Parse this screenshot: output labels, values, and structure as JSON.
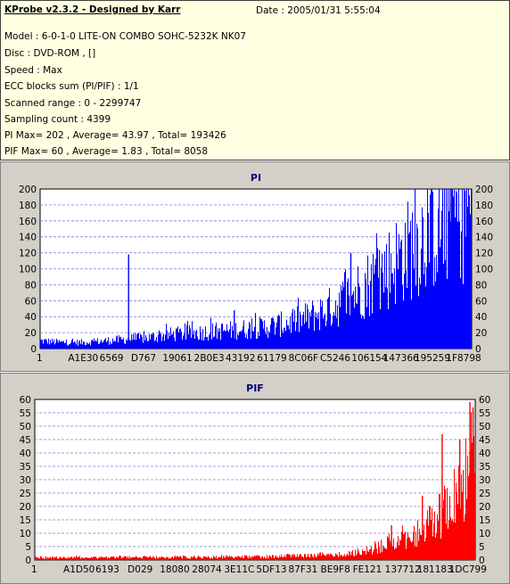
{
  "info": {
    "app_title": "KProbe v2.3.2 - Designed by Karr",
    "date": "Date : 2005/01/31 5:55:04",
    "lines": [
      "Model : 6-0-1-0 LITE-ON COMBO SOHC-5232K NK07",
      "Disc : DVD-ROM ,  []",
      "Speed : Max",
      "ECC blocks sum (PI/PIF) : 1/1",
      "Scanned range : 0 - 2299747",
      "Sampling count : 4399",
      "PI Max= 202 , Average= 43.97 , Total= 193426",
      "PIF Max= 60 , Average= 1.83 , Total= 8058"
    ]
  },
  "chart_data": [
    {
      "type": "bar",
      "title": "PI",
      "color": "#0000ff",
      "ylim": [
        0,
        200
      ],
      "y_ticks": [
        0,
        20,
        40,
        60,
        80,
        100,
        120,
        140,
        160,
        180,
        200
      ],
      "x_tick_labels": [
        "1",
        "A1E30",
        "6569",
        "D767",
        "19061",
        "2B0E3",
        "43192",
        "61179",
        "8C06F",
        "C5246",
        "106154",
        "147366",
        "195259",
        "1F8798"
      ],
      "grid": true,
      "envelope": {
        "x": [
          0,
          0.05,
          0.1,
          0.15,
          0.2,
          0.25,
          0.3,
          0.35,
          0.4,
          0.45,
          0.5,
          0.55,
          0.6,
          0.65,
          0.7,
          0.75,
          0.8,
          0.85,
          0.9,
          0.95,
          1.0
        ],
        "y": [
          10,
          8,
          8,
          10,
          12,
          14,
          18,
          20,
          22,
          24,
          26,
          30,
          36,
          46,
          60,
          80,
          100,
          125,
          150,
          170,
          180
        ]
      },
      "spikes": [
        {
          "x": 0.205,
          "y": 118
        },
        {
          "x": 0.45,
          "y": 48
        },
        {
          "x": 0.72,
          "y": 120
        },
        {
          "x": 0.95,
          "y": 200
        },
        {
          "x": 0.985,
          "y": 198
        }
      ]
    },
    {
      "type": "bar",
      "title": "PIF",
      "color": "#ff0000",
      "ylim": [
        0,
        60
      ],
      "y_ticks": [
        0,
        5,
        10,
        15,
        20,
        25,
        30,
        35,
        40,
        45,
        50,
        55,
        60
      ],
      "x_tick_labels": [
        "1",
        "A1D50",
        "6193",
        "D029",
        "18080",
        "28074",
        "3E11C",
        "5DF13",
        "87F31",
        "BE9F8",
        "FE121",
        "137712",
        "181183",
        "1DC799"
      ],
      "grid": true,
      "envelope": {
        "x": [
          0,
          0.05,
          0.1,
          0.2,
          0.3,
          0.4,
          0.5,
          0.6,
          0.7,
          0.74,
          0.78,
          0.82,
          0.86,
          0.9,
          0.94,
          0.97,
          1.0
        ],
        "y": [
          1,
          1,
          1,
          1,
          1,
          1,
          1.2,
          1.5,
          2,
          3,
          5,
          7,
          10,
          14,
          20,
          28,
          36
        ]
      },
      "spikes": [
        {
          "x": 0.81,
          "y": 13
        },
        {
          "x": 0.88,
          "y": 24
        },
        {
          "x": 0.925,
          "y": 47
        },
        {
          "x": 0.965,
          "y": 45
        },
        {
          "x": 0.988,
          "y": 59
        },
        {
          "x": 0.995,
          "y": 57
        }
      ]
    }
  ]
}
